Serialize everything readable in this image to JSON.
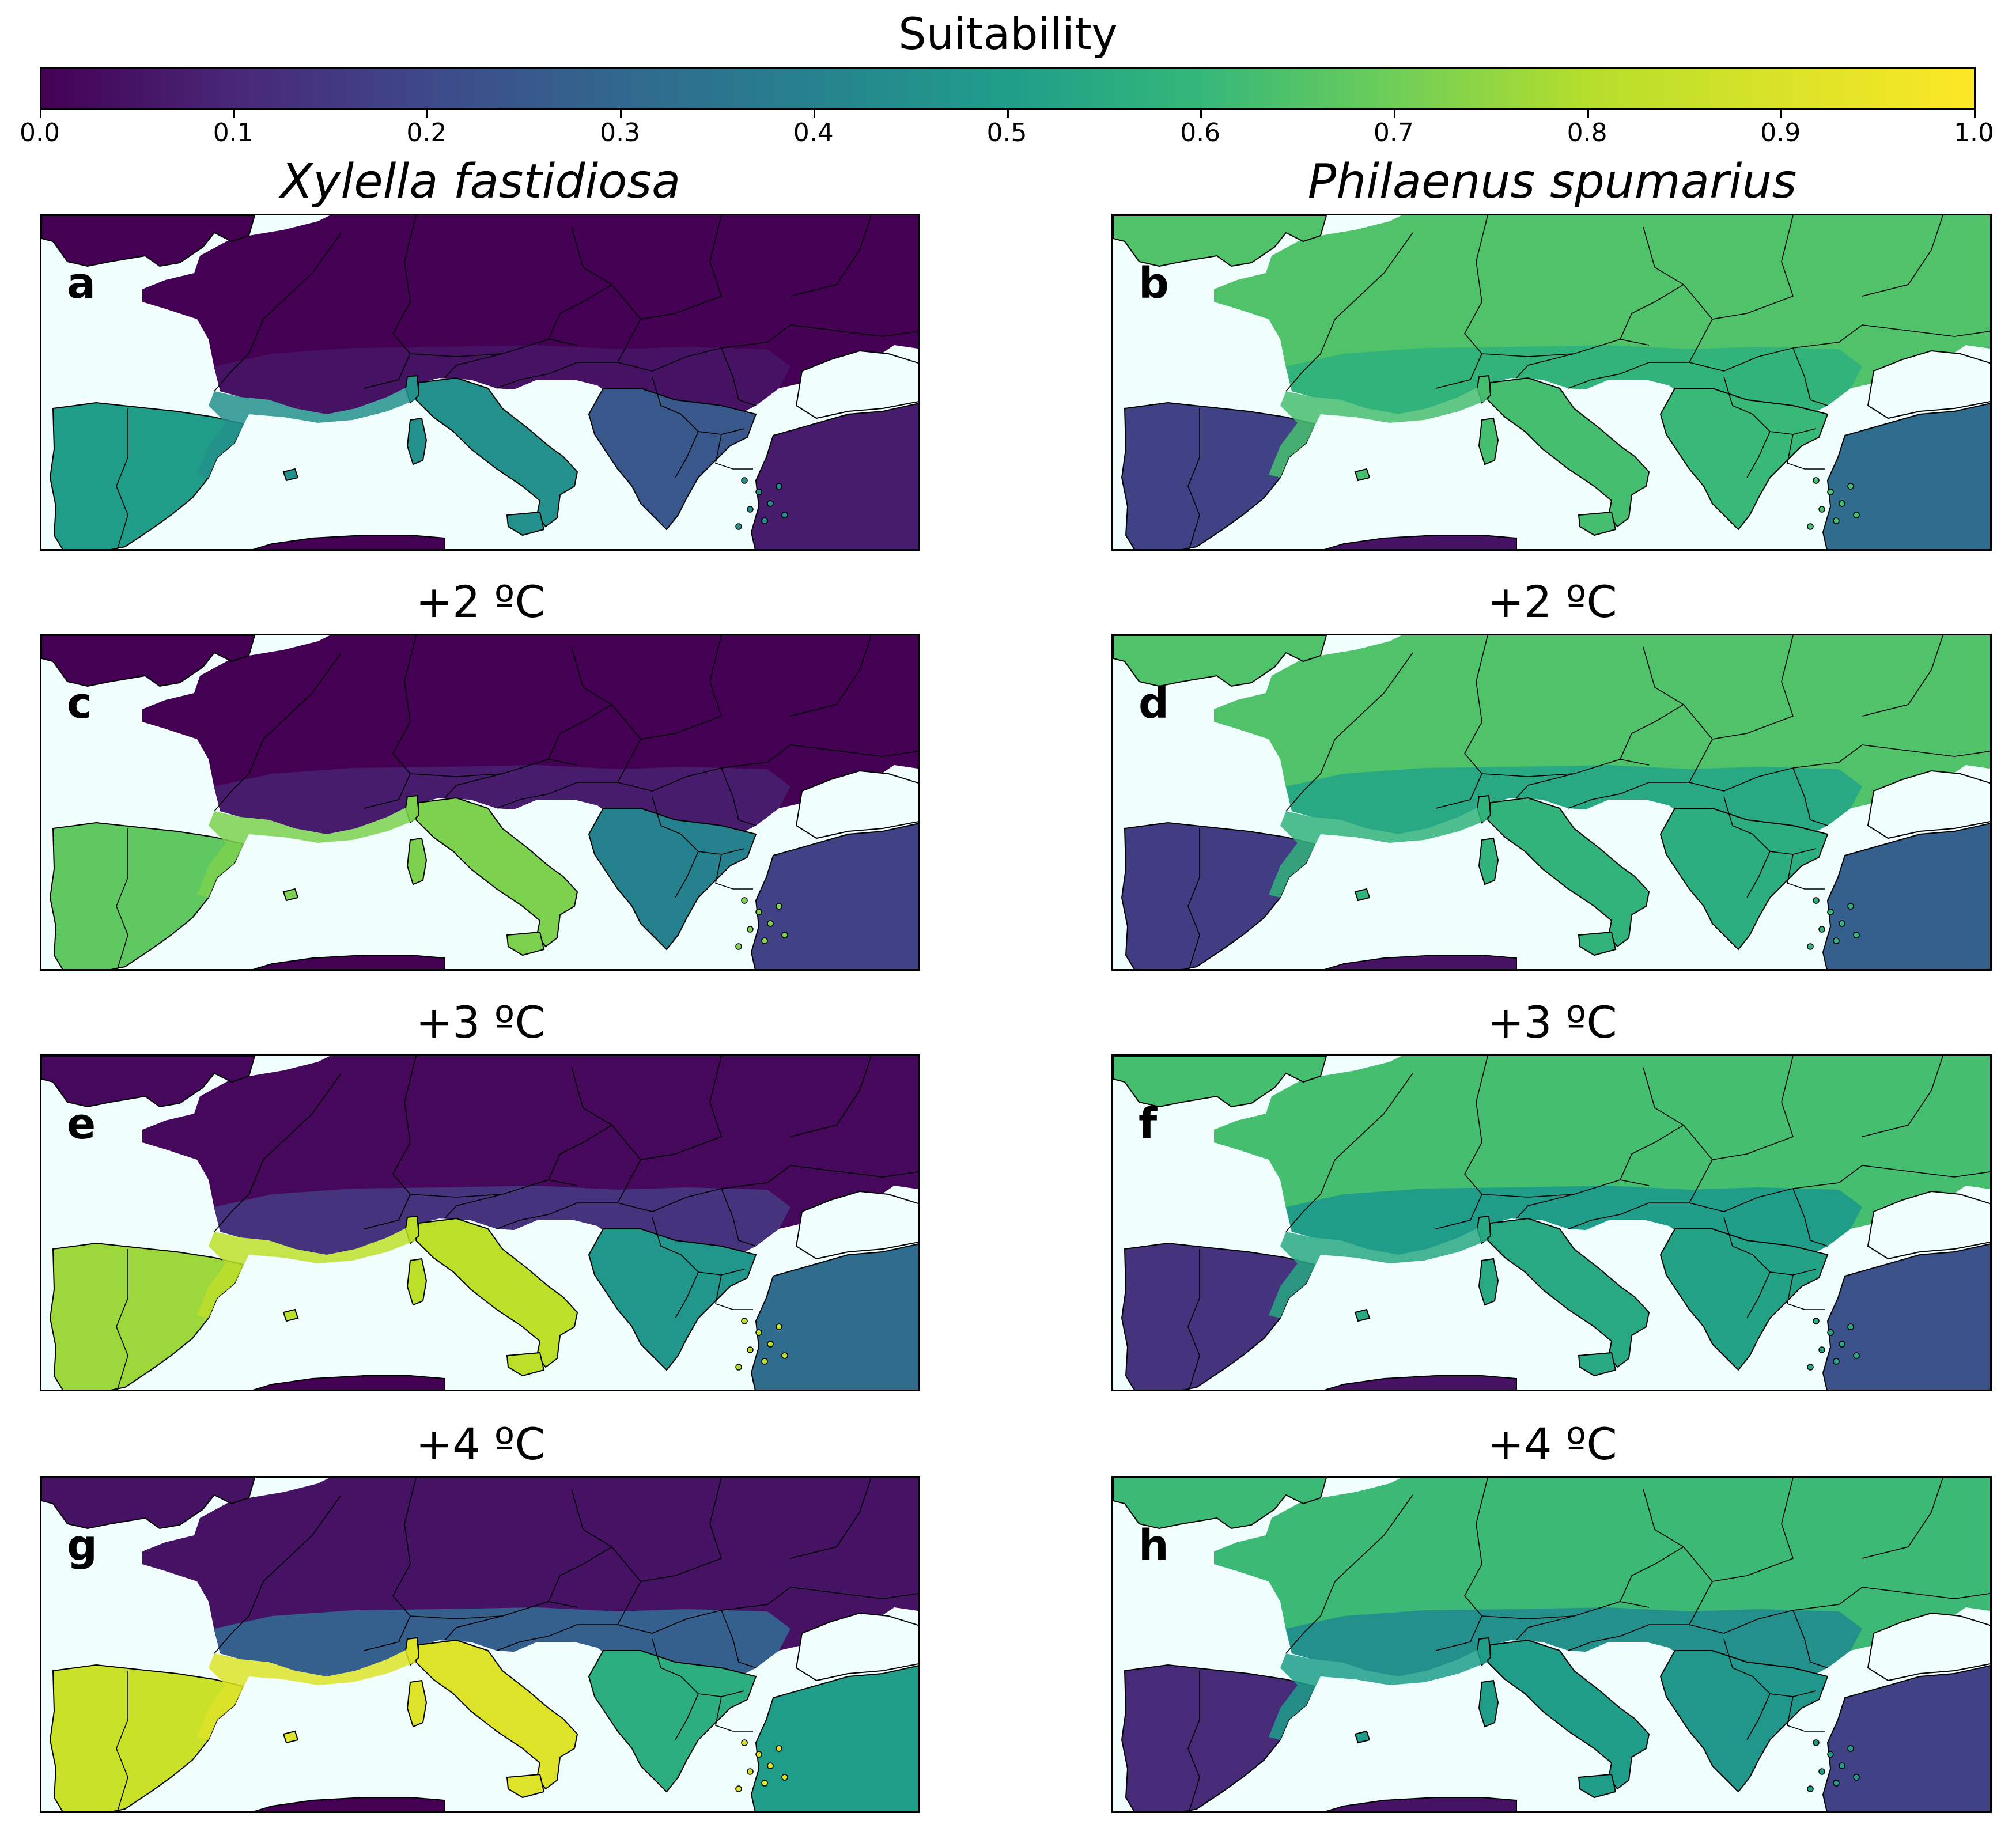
{
  "colorbar": {
    "title": "Suitability",
    "ticks": [
      "0.0",
      "0.1",
      "0.2",
      "0.3",
      "0.4",
      "0.5",
      "0.6",
      "0.7",
      "0.8",
      "0.9",
      "1.0"
    ],
    "colormap": "viridis",
    "colors": [
      "#440154",
      "#482777",
      "#3e4989",
      "#31688e",
      "#26828e",
      "#1f9e89",
      "#35b779",
      "#6ece58",
      "#b5de2b",
      "#fde725"
    ]
  },
  "columns": [
    {
      "title": "Xylella fastidiosa"
    },
    {
      "title": "Philaenus spumarius"
    }
  ],
  "rows": [
    {
      "title": ""
    },
    {
      "title": "+2 ºC"
    },
    {
      "title": "+3 ºC"
    },
    {
      "title": "+4 ºC"
    }
  ],
  "panels": [
    {
      "label": "a",
      "species": "Xylella fastidiosa",
      "warming": "",
      "suitability": {
        "north": 0.0,
        "central": 0.05,
        "mediterranean": 0.5,
        "iberia": 0.55,
        "turkey": 0.08,
        "north_africa": 0.0
      }
    },
    {
      "label": "b",
      "species": "Philaenus spumarius",
      "warming": "",
      "suitability": {
        "north": 0.72,
        "central": 0.65,
        "mediterranean": 0.7,
        "iberia": 0.2,
        "turkey": 0.35,
        "north_africa": 0.05
      }
    },
    {
      "label": "c",
      "species": "Xylella fastidiosa",
      "warming": "+2 ºC",
      "suitability": {
        "north": 0.0,
        "central": 0.08,
        "mediterranean": 0.8,
        "iberia": 0.75,
        "turkey": 0.2,
        "north_africa": 0.0
      }
    },
    {
      "label": "d",
      "species": "Philaenus spumarius",
      "warming": "+2 ºC",
      "suitability": {
        "north": 0.72,
        "central": 0.6,
        "mediterranean": 0.65,
        "iberia": 0.18,
        "turkey": 0.3,
        "north_africa": 0.05
      }
    },
    {
      "label": "e",
      "species": "Xylella fastidiosa",
      "warming": "+3 ºC",
      "suitability": {
        "north": 0.02,
        "central": 0.15,
        "mediterranean": 0.9,
        "iberia": 0.85,
        "turkey": 0.35,
        "north_africa": 0.0
      }
    },
    {
      "label": "f",
      "species": "Philaenus spumarius",
      "warming": "+3 ºC",
      "suitability": {
        "north": 0.7,
        "central": 0.55,
        "mediterranean": 0.6,
        "iberia": 0.15,
        "turkey": 0.25,
        "north_africa": 0.05
      }
    },
    {
      "label": "g",
      "species": "Xylella fastidiosa",
      "warming": "+4 ºC",
      "suitability": {
        "north": 0.05,
        "central": 0.3,
        "mediterranean": 0.95,
        "iberia": 0.92,
        "turkey": 0.55,
        "north_africa": 0.0
      }
    },
    {
      "label": "h",
      "species": "Philaenus spumarius",
      "warming": "+4 ºC",
      "suitability": {
        "north": 0.68,
        "central": 0.5,
        "mediterranean": 0.55,
        "iberia": 0.12,
        "turkey": 0.2,
        "north_africa": 0.05
      }
    }
  ]
}
